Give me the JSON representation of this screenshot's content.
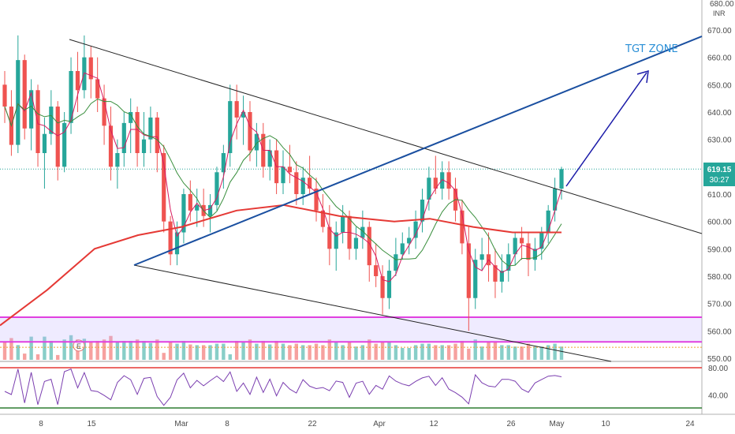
{
  "chart_data": {
    "type": "candlestick",
    "currency": "INR",
    "y_ticks": [
      550,
      560,
      570,
      580,
      590,
      600,
      610,
      620,
      630,
      640,
      650,
      660,
      670,
      680
    ],
    "ylim": [
      548,
      683
    ],
    "price_axis_top_label": "680.00",
    "x_tick_labels": [
      "8",
      "15",
      "Mar",
      "8",
      "22",
      "Apr",
      "12",
      "26",
      "May",
      "10",
      "24"
    ],
    "last_price": "619.15",
    "countdown": "30:27",
    "annotation": "TGT ZONE",
    "event_marker": "E",
    "rsi": {
      "ticks": [
        "80.00",
        "40.00"
      ],
      "upper_level": 80,
      "lower_level": 20
    },
    "candles": [
      [
        650,
        655,
        636,
        642
      ],
      [
        642,
        648,
        624,
        628
      ],
      [
        628,
        668,
        625,
        659
      ],
      [
        659,
        661,
        630,
        634
      ],
      [
        634,
        652,
        626,
        648
      ],
      [
        648,
        650,
        620,
        625
      ],
      [
        625,
        638,
        612,
        632
      ],
      [
        632,
        648,
        628,
        642
      ],
      [
        642,
        644,
        615,
        620
      ],
      [
        620,
        640,
        618,
        636
      ],
      [
        636,
        660,
        632,
        655
      ],
      [
        655,
        662,
        640,
        648
      ],
      [
        648,
        668,
        645,
        660
      ],
      [
        660,
        664,
        645,
        652
      ],
      [
        652,
        660,
        640,
        645
      ],
      [
        645,
        650,
        628,
        635
      ],
      [
        635,
        642,
        615,
        620
      ],
      [
        620,
        630,
        612,
        625
      ],
      [
        625,
        640,
        620,
        636
      ],
      [
        636,
        645,
        625,
        640
      ],
      [
        640,
        642,
        620,
        625
      ],
      [
        625,
        640,
        620,
        630
      ],
      [
        630,
        642,
        625,
        638
      ],
      [
        638,
        640,
        618,
        625
      ],
      [
        625,
        628,
        596,
        600
      ],
      [
        600,
        602,
        584,
        588
      ],
      [
        588,
        600,
        584,
        596
      ],
      [
        596,
        612,
        592,
        610
      ],
      [
        610,
        615,
        600,
        604
      ],
      [
        604,
        612,
        598,
        606
      ],
      [
        606,
        612,
        598,
        602
      ],
      [
        602,
        610,
        596,
        606
      ],
      [
        606,
        620,
        604,
        618
      ],
      [
        618,
        628,
        612,
        625
      ],
      [
        625,
        650,
        620,
        644
      ],
      [
        644,
        650,
        630,
        638
      ],
      [
        638,
        646,
        628,
        640
      ],
      [
        640,
        644,
        622,
        626
      ],
      [
        626,
        636,
        620,
        632
      ],
      [
        632,
        636,
        616,
        620
      ],
      [
        620,
        630,
        615,
        626
      ],
      [
        626,
        630,
        610,
        614
      ],
      [
        614,
        626,
        610,
        620
      ],
      [
        620,
        628,
        614,
        618
      ],
      [
        618,
        622,
        606,
        610
      ],
      [
        610,
        620,
        606,
        616
      ],
      [
        616,
        624,
        610,
        612
      ],
      [
        612,
        616,
        600,
        604
      ],
      [
        604,
        610,
        596,
        598
      ],
      [
        598,
        606,
        584,
        590
      ],
      [
        590,
        600,
        582,
        596
      ],
      [
        596,
        606,
        592,
        602
      ],
      [
        602,
        604,
        586,
        590
      ],
      [
        590,
        598,
        586,
        594
      ],
      [
        594,
        604,
        590,
        598
      ],
      [
        598,
        600,
        578,
        584
      ],
      [
        584,
        592,
        576,
        580
      ],
      [
        580,
        584,
        566,
        572
      ],
      [
        572,
        586,
        568,
        582
      ],
      [
        582,
        594,
        580,
        588
      ],
      [
        588,
        596,
        586,
        592
      ],
      [
        592,
        598,
        588,
        594
      ],
      [
        594,
        604,
        590,
        600
      ],
      [
        600,
        612,
        596,
        608
      ],
      [
        608,
        620,
        604,
        616
      ],
      [
        616,
        624,
        610,
        612
      ],
      [
        612,
        622,
        608,
        618
      ],
      [
        618,
        622,
        608,
        612
      ],
      [
        612,
        616,
        600,
        604
      ],
      [
        604,
        608,
        588,
        592
      ],
      [
        592,
        598,
        560,
        572
      ],
      [
        572,
        590,
        568,
        586
      ],
      [
        586,
        594,
        582,
        588
      ],
      [
        588,
        596,
        578,
        584
      ],
      [
        584,
        590,
        572,
        578
      ],
      [
        578,
        588,
        574,
        582
      ],
      [
        582,
        592,
        578,
        588
      ],
      [
        588,
        596,
        584,
        594
      ],
      [
        594,
        598,
        586,
        592
      ],
      [
        592,
        596,
        580,
        586
      ],
      [
        586,
        594,
        582,
        590
      ],
      [
        590,
        598,
        586,
        596
      ],
      [
        596,
        606,
        592,
        604
      ],
      [
        604,
        616,
        600,
        612
      ],
      [
        612,
        620,
        608,
        619.15
      ]
    ]
  }
}
